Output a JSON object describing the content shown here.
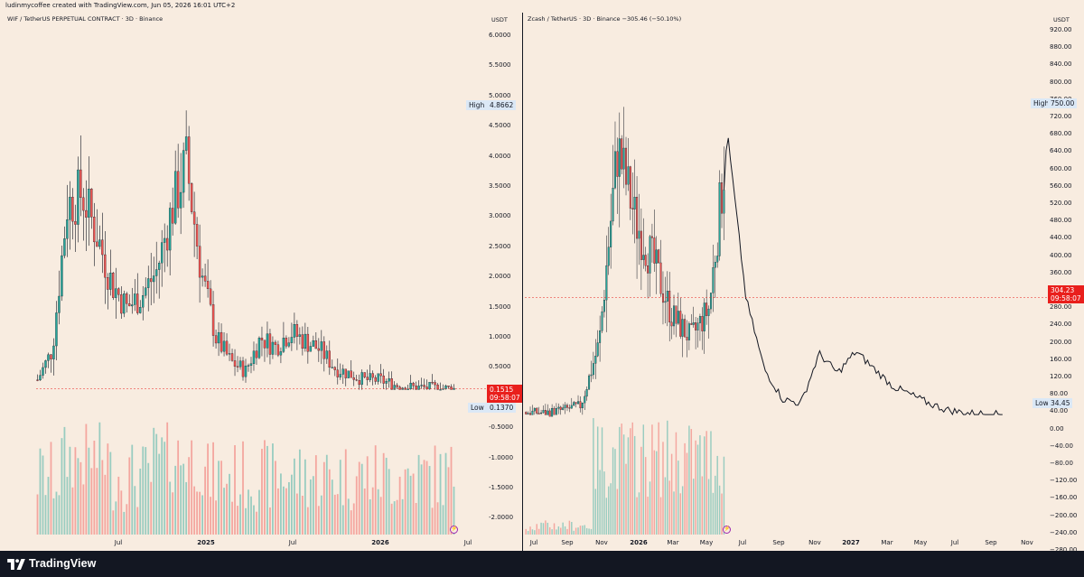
{
  "header": {
    "credit": "ludinmycoffee created with TradingView.com, Jun 05, 2026 16:01 UTC+2"
  },
  "footer": {
    "brand": "TradingView"
  },
  "icons": {
    "logo": "tradingview-logo-icon",
    "event": "lightning-event-icon"
  },
  "colors": {
    "background": "#f8ece0",
    "up": "#26a69a",
    "down": "#ef5350",
    "price_tag": "#e91f1c",
    "high_low_badge": "#dbe8f6",
    "line": "#131722"
  },
  "left_chart": {
    "title": "WIF / TetherUS PERPETUAL CONTRACT · 3D · Binance",
    "axis_unit": "USDT",
    "y_ticks": [
      "6.0000",
      "5.5000",
      "5.0000",
      "4.5000",
      "4.0000",
      "3.5000",
      "3.0000",
      "2.5000",
      "2.0000",
      "1.5000",
      "1.0000",
      "0.5000",
      "-0.5000",
      "-1.0000",
      "-1.5000",
      "-2.0000"
    ],
    "high_label": "High",
    "high_value": "4.8662",
    "low_label": "Low",
    "low_value": "0.1370",
    "last_price": "0.1515",
    "countdown": "09:58:07",
    "x_labels": [
      "Jul",
      "2025",
      "Jul",
      "2026",
      "Jul"
    ]
  },
  "right_chart": {
    "title": "Zcash / TetherUS · 3D · Binance  −305.46 (−50.10%)",
    "axis_unit": "USDT",
    "y_ticks": [
      "920.00",
      "880.00",
      "840.00",
      "800.00",
      "760.00",
      "720.00",
      "680.00",
      "640.00",
      "600.00",
      "560.00",
      "520.00",
      "480.00",
      "440.00",
      "400.00",
      "360.00",
      "320.00",
      "280.00",
      "240.00",
      "200.00",
      "160.00",
      "120.00",
      "80.00",
      "40.00",
      "0.00",
      "−40.00",
      "−80.00",
      "−120.00",
      "−160.00",
      "−200.00",
      "−240.00",
      "−280.00"
    ],
    "high_label": "High",
    "high_value": "750.00",
    "low_label": "Low",
    "low_value": "34.45",
    "last_price": "304.23",
    "countdown": "09:58:07",
    "x_labels": [
      "Jul",
      "Sep",
      "Nov",
      "2026",
      "Mar",
      "May",
      "Jul",
      "Sep",
      "Nov",
      "2027",
      "Mar",
      "May",
      "Jul",
      "Sep",
      "Nov"
    ]
  },
  "chart_data": [
    {
      "type": "candlestick",
      "title": "WIF / TetherUS PERPETUAL CONTRACT · 3D · Binance",
      "ylabel": "USDT",
      "ylim": [
        -2.2,
        6.2
      ],
      "x": [
        "2024-02",
        "2024-03",
        "2024-04",
        "2024-05",
        "2024-06",
        "2024-07",
        "2024-08",
        "2024-09",
        "2024-10",
        "2024-11",
        "2024-12",
        "2025-01",
        "2025-02",
        "2025-03",
        "2025-04",
        "2025-05",
        "2025-06",
        "2025-07",
        "2025-08",
        "2025-09",
        "2025-10",
        "2025-11",
        "2025-12",
        "2026-01",
        "2026-02",
        "2026-03",
        "2026-04",
        "2026-05",
        "2026-06"
      ],
      "close": [
        0.3,
        0.8,
        3.2,
        3.4,
        2.7,
        1.9,
        1.5,
        1.7,
        2.1,
        3.1,
        3.9,
        2.1,
        1.0,
        0.6,
        0.45,
        1.0,
        0.85,
        1.1,
        0.95,
        0.8,
        0.5,
        0.4,
        0.3,
        0.3,
        0.22,
        0.18,
        0.17,
        0.16,
        0.15
      ],
      "high": 4.8662,
      "low": 0.137,
      "last": 0.1515
    },
    {
      "type": "line",
      "title": "Zcash / TetherUS · 3D · Binance",
      "ylabel": "USDT",
      "ylim": [
        -290,
        940
      ],
      "x": [
        "2025-07",
        "2025-08",
        "2025-09",
        "2025-10",
        "2025-11",
        "2025-12",
        "2026-01",
        "2026-02",
        "2026-03",
        "2026-04",
        "2026-05",
        "2026-06",
        "2026-07",
        "2026-08",
        "2026-09",
        "2026-10",
        "2026-11",
        "2026-12",
        "2027-01",
        "2027-02",
        "2027-03",
        "2027-04",
        "2027-05",
        "2027-06",
        "2027-07",
        "2027-08",
        "2027-09"
      ],
      "values": [
        40,
        38,
        45,
        55,
        200,
        650,
        480,
        380,
        260,
        210,
        280,
        680,
        304,
        140,
        70,
        60,
        175,
        130,
        180,
        140,
        100,
        80,
        60,
        45,
        38,
        36,
        34.45
      ],
      "high": 750,
      "low": 34.45,
      "last": 304.23,
      "change": "−305.46 (−50.10%)"
    }
  ]
}
